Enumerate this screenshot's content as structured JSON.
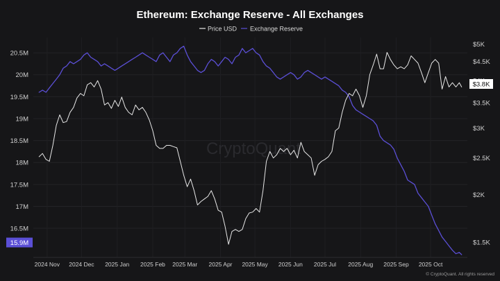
{
  "chart_data": {
    "type": "line",
    "title": "Ethereum: Exchange Reserve - All Exchanges",
    "x_tick_labels": [
      "2024 Nov",
      "2024 Dec",
      "2025 Jan",
      "2025 Feb",
      "2025 Mar",
      "2025 Apr",
      "2025 May",
      "2025 Jun",
      "2025 Jul",
      "2025 Aug",
      "2025 Sep",
      "2025 Oct"
    ],
    "left_axis": {
      "unit": "M",
      "ticks": [
        16.5,
        17,
        17.5,
        18,
        18.5,
        19,
        19.5,
        20,
        20.5
      ],
      "tick_labels": [
        "16.5M",
        "17M",
        "17.5M",
        "18M",
        "18.5M",
        "19M",
        "19.5M",
        "20M",
        "20.5M"
      ],
      "range": [
        15.9,
        20.85
      ]
    },
    "right_axis": {
      "scale": "log",
      "ticks": [
        1500,
        2000,
        2500,
        3000,
        3500,
        4000,
        4500,
        5000
      ],
      "tick_labels": [
        "$1.5K",
        "$2K",
        "$2.5K",
        "$3K",
        "$3.5K",
        "$4K",
        "$4.5K",
        "$5K"
      ],
      "range": [
        1390,
        5200
      ]
    },
    "legend": {
      "placement": "top-center",
      "items": [
        "Price USD",
        "Exchange Reserve"
      ]
    },
    "grid": true,
    "current_values": {
      "reserve_label": "15.9M",
      "price_label": "$3.8K"
    },
    "series": [
      {
        "name": "Price USD",
        "color": "#e8e8e8",
        "axis": "right",
        "points": [
          [
            "2024-10-25",
            2520
          ],
          [
            "2024-10-28",
            2570
          ],
          [
            "2024-10-31",
            2480
          ],
          [
            "2024-11-03",
            2450
          ],
          [
            "2024-11-06",
            2700
          ],
          [
            "2024-11-09",
            3050
          ],
          [
            "2024-11-12",
            3250
          ],
          [
            "2024-11-15",
            3100
          ],
          [
            "2024-11-18",
            3120
          ],
          [
            "2024-11-21",
            3300
          ],
          [
            "2024-11-24",
            3400
          ],
          [
            "2024-11-27",
            3600
          ],
          [
            "2024-11-30",
            3700
          ],
          [
            "2024-12-03",
            3650
          ],
          [
            "2024-12-06",
            3900
          ],
          [
            "2024-12-09",
            3950
          ],
          [
            "2024-12-12",
            3850
          ],
          [
            "2024-12-15",
            4000
          ],
          [
            "2024-12-18",
            3800
          ],
          [
            "2024-12-21",
            3450
          ],
          [
            "2024-12-24",
            3500
          ],
          [
            "2024-12-27",
            3380
          ],
          [
            "2024-12-30",
            3550
          ],
          [
            "2025-01-02",
            3420
          ],
          [
            "2025-01-05",
            3620
          ],
          [
            "2025-01-08",
            3400
          ],
          [
            "2025-01-11",
            3300
          ],
          [
            "2025-01-14",
            3250
          ],
          [
            "2025-01-17",
            3450
          ],
          [
            "2025-01-20",
            3350
          ],
          [
            "2025-01-23",
            3400
          ],
          [
            "2025-01-26",
            3300
          ],
          [
            "2025-01-29",
            3150
          ],
          [
            "2025-02-01",
            2950
          ],
          [
            "2025-02-04",
            2700
          ],
          [
            "2025-02-07",
            2650
          ],
          [
            "2025-02-10",
            2650
          ],
          [
            "2025-02-13",
            2700
          ],
          [
            "2025-02-16",
            2700
          ],
          [
            "2025-02-19",
            2680
          ],
          [
            "2025-02-22",
            2660
          ],
          [
            "2025-02-25",
            2450
          ],
          [
            "2025-02-28",
            2250
          ],
          [
            "2025-03-03",
            2100
          ],
          [
            "2025-03-06",
            2200
          ],
          [
            "2025-03-09",
            2050
          ],
          [
            "2025-03-12",
            1880
          ],
          [
            "2025-03-15",
            1920
          ],
          [
            "2025-03-18",
            1950
          ],
          [
            "2025-03-21",
            1980
          ],
          [
            "2025-03-24",
            2050
          ],
          [
            "2025-03-27",
            1950
          ],
          [
            "2025-03-30",
            1820
          ],
          [
            "2025-04-02",
            1800
          ],
          [
            "2025-04-05",
            1650
          ],
          [
            "2025-04-08",
            1480
          ],
          [
            "2025-04-11",
            1600
          ],
          [
            "2025-04-14",
            1620
          ],
          [
            "2025-04-17",
            1600
          ],
          [
            "2025-04-20",
            1620
          ],
          [
            "2025-04-23",
            1730
          ],
          [
            "2025-04-26",
            1790
          ],
          [
            "2025-04-29",
            1800
          ],
          [
            "2025-05-02",
            1840
          ],
          [
            "2025-05-05",
            1800
          ],
          [
            "2025-05-08",
            2050
          ],
          [
            "2025-05-11",
            2450
          ],
          [
            "2025-05-14",
            2600
          ],
          [
            "2025-05-17",
            2500
          ],
          [
            "2025-05-20",
            2550
          ],
          [
            "2025-05-23",
            2650
          ],
          [
            "2025-05-26",
            2600
          ],
          [
            "2025-05-29",
            2650
          ],
          [
            "2025-06-01",
            2550
          ],
          [
            "2025-06-04",
            2620
          ],
          [
            "2025-06-07",
            2500
          ],
          [
            "2025-06-10",
            2750
          ],
          [
            "2025-06-13",
            2600
          ],
          [
            "2025-06-16",
            2550
          ],
          [
            "2025-06-19",
            2500
          ],
          [
            "2025-06-22",
            2250
          ],
          [
            "2025-06-25",
            2400
          ],
          [
            "2025-06-28",
            2450
          ],
          [
            "2025-07-01",
            2480
          ],
          [
            "2025-07-04",
            2520
          ],
          [
            "2025-07-07",
            2600
          ],
          [
            "2025-07-10",
            2950
          ],
          [
            "2025-07-13",
            3000
          ],
          [
            "2025-07-16",
            3300
          ],
          [
            "2025-07-19",
            3550
          ],
          [
            "2025-07-22",
            3700
          ],
          [
            "2025-07-25",
            3650
          ],
          [
            "2025-07-28",
            3800
          ],
          [
            "2025-07-31",
            3650
          ],
          [
            "2025-08-03",
            3400
          ],
          [
            "2025-08-06",
            3650
          ],
          [
            "2025-08-09",
            4150
          ],
          [
            "2025-08-12",
            4400
          ],
          [
            "2025-08-15",
            4700
          ],
          [
            "2025-08-18",
            4300
          ],
          [
            "2025-08-21",
            4300
          ],
          [
            "2025-08-24",
            4750
          ],
          [
            "2025-08-27",
            4550
          ],
          [
            "2025-08-30",
            4400
          ],
          [
            "2025-09-02",
            4300
          ],
          [
            "2025-09-05",
            4350
          ],
          [
            "2025-09-08",
            4300
          ],
          [
            "2025-09-11",
            4400
          ],
          [
            "2025-09-14",
            4650
          ],
          [
            "2025-09-17",
            4550
          ],
          [
            "2025-09-20",
            4450
          ],
          [
            "2025-09-23",
            4200
          ],
          [
            "2025-09-26",
            3950
          ],
          [
            "2025-09-29",
            4200
          ],
          [
            "2025-10-02",
            4450
          ],
          [
            "2025-10-05",
            4550
          ],
          [
            "2025-10-08",
            4450
          ],
          [
            "2025-10-11",
            3800
          ],
          [
            "2025-10-14",
            4100
          ],
          [
            "2025-10-17",
            3850
          ],
          [
            "2025-10-20",
            3950
          ],
          [
            "2025-10-23",
            3850
          ],
          [
            "2025-10-26",
            3950
          ],
          [
            "2025-10-28",
            3850
          ]
        ]
      },
      {
        "name": "Exchange Reserve",
        "color": "#5b4fd6",
        "axis": "left",
        "points": [
          [
            "2024-10-25",
            19.6
          ],
          [
            "2024-10-28",
            19.65
          ],
          [
            "2024-10-31",
            19.6
          ],
          [
            "2024-11-03",
            19.7
          ],
          [
            "2024-11-06",
            19.8
          ],
          [
            "2024-11-09",
            19.9
          ],
          [
            "2024-11-12",
            20.0
          ],
          [
            "2024-11-15",
            20.15
          ],
          [
            "2024-11-18",
            20.2
          ],
          [
            "2024-11-21",
            20.3
          ],
          [
            "2024-11-24",
            20.25
          ],
          [
            "2024-11-27",
            20.3
          ],
          [
            "2024-11-30",
            20.35
          ],
          [
            "2024-12-03",
            20.45
          ],
          [
            "2024-12-06",
            20.5
          ],
          [
            "2024-12-09",
            20.4
          ],
          [
            "2024-12-12",
            20.35
          ],
          [
            "2024-12-15",
            20.3
          ],
          [
            "2024-12-18",
            20.2
          ],
          [
            "2024-12-21",
            20.25
          ],
          [
            "2024-12-24",
            20.2
          ],
          [
            "2024-12-27",
            20.15
          ],
          [
            "2024-12-30",
            20.1
          ],
          [
            "2025-01-02",
            20.15
          ],
          [
            "2025-01-05",
            20.2
          ],
          [
            "2025-01-08",
            20.25
          ],
          [
            "2025-01-11",
            20.3
          ],
          [
            "2025-01-14",
            20.35
          ],
          [
            "2025-01-17",
            20.4
          ],
          [
            "2025-01-20",
            20.45
          ],
          [
            "2025-01-23",
            20.5
          ],
          [
            "2025-01-26",
            20.45
          ],
          [
            "2025-01-29",
            20.4
          ],
          [
            "2025-02-01",
            20.35
          ],
          [
            "2025-02-04",
            20.3
          ],
          [
            "2025-02-07",
            20.45
          ],
          [
            "2025-02-10",
            20.5
          ],
          [
            "2025-02-13",
            20.4
          ],
          [
            "2025-02-16",
            20.3
          ],
          [
            "2025-02-19",
            20.45
          ],
          [
            "2025-02-22",
            20.5
          ],
          [
            "2025-02-25",
            20.6
          ],
          [
            "2025-02-28",
            20.65
          ],
          [
            "2025-03-03",
            20.45
          ],
          [
            "2025-03-06",
            20.3
          ],
          [
            "2025-03-09",
            20.2
          ],
          [
            "2025-03-12",
            20.1
          ],
          [
            "2025-03-15",
            20.05
          ],
          [
            "2025-03-18",
            20.1
          ],
          [
            "2025-03-21",
            20.25
          ],
          [
            "2025-03-24",
            20.35
          ],
          [
            "2025-03-27",
            20.3
          ],
          [
            "2025-03-30",
            20.2
          ],
          [
            "2025-04-02",
            20.3
          ],
          [
            "2025-04-05",
            20.4
          ],
          [
            "2025-04-08",
            20.35
          ],
          [
            "2025-04-11",
            20.25
          ],
          [
            "2025-04-14",
            20.4
          ],
          [
            "2025-04-17",
            20.45
          ],
          [
            "2025-04-20",
            20.6
          ],
          [
            "2025-04-23",
            20.5
          ],
          [
            "2025-04-26",
            20.55
          ],
          [
            "2025-04-29",
            20.6
          ],
          [
            "2025-05-02",
            20.5
          ],
          [
            "2025-05-05",
            20.45
          ],
          [
            "2025-05-08",
            20.3
          ],
          [
            "2025-05-11",
            20.2
          ],
          [
            "2025-05-14",
            20.15
          ],
          [
            "2025-05-17",
            20.05
          ],
          [
            "2025-05-20",
            19.95
          ],
          [
            "2025-05-23",
            19.9
          ],
          [
            "2025-05-26",
            19.95
          ],
          [
            "2025-05-29",
            20.0
          ],
          [
            "2025-06-01",
            20.05
          ],
          [
            "2025-06-04",
            20.0
          ],
          [
            "2025-06-07",
            19.9
          ],
          [
            "2025-06-10",
            19.95
          ],
          [
            "2025-06-13",
            20.05
          ],
          [
            "2025-06-16",
            20.1
          ],
          [
            "2025-06-19",
            20.05
          ],
          [
            "2025-06-22",
            20.0
          ],
          [
            "2025-06-25",
            19.95
          ],
          [
            "2025-06-28",
            19.9
          ],
          [
            "2025-07-01",
            19.95
          ],
          [
            "2025-07-04",
            19.9
          ],
          [
            "2025-07-07",
            19.85
          ],
          [
            "2025-07-10",
            19.8
          ],
          [
            "2025-07-13",
            19.75
          ],
          [
            "2025-07-16",
            19.65
          ],
          [
            "2025-07-19",
            19.6
          ],
          [
            "2025-07-22",
            19.5
          ],
          [
            "2025-07-25",
            19.3
          ],
          [
            "2025-07-28",
            19.2
          ],
          [
            "2025-07-31",
            19.15
          ],
          [
            "2025-08-03",
            19.1
          ],
          [
            "2025-08-06",
            19.05
          ],
          [
            "2025-08-09",
            19.0
          ],
          [
            "2025-08-12",
            18.95
          ],
          [
            "2025-08-15",
            18.85
          ],
          [
            "2025-08-18",
            18.6
          ],
          [
            "2025-08-21",
            18.5
          ],
          [
            "2025-08-24",
            18.45
          ],
          [
            "2025-08-27",
            18.4
          ],
          [
            "2025-08-30",
            18.3
          ],
          [
            "2025-09-02",
            18.1
          ],
          [
            "2025-09-05",
            17.95
          ],
          [
            "2025-09-08",
            17.8
          ],
          [
            "2025-09-11",
            17.6
          ],
          [
            "2025-09-14",
            17.55
          ],
          [
            "2025-09-17",
            17.5
          ],
          [
            "2025-09-20",
            17.3
          ],
          [
            "2025-09-23",
            17.2
          ],
          [
            "2025-09-26",
            17.1
          ],
          [
            "2025-09-29",
            17.0
          ],
          [
            "2025-10-02",
            16.8
          ],
          [
            "2025-10-05",
            16.6
          ],
          [
            "2025-10-08",
            16.45
          ],
          [
            "2025-10-11",
            16.3
          ],
          [
            "2025-10-14",
            16.2
          ],
          [
            "2025-10-17",
            16.1
          ],
          [
            "2025-10-20",
            16.0
          ],
          [
            "2025-10-23",
            15.92
          ],
          [
            "2025-10-26",
            15.95
          ],
          [
            "2025-10-28",
            15.9
          ]
        ]
      }
    ]
  },
  "watermark": "CryptoQuant",
  "copyright": "© CryptoQuant. All rights reserved"
}
